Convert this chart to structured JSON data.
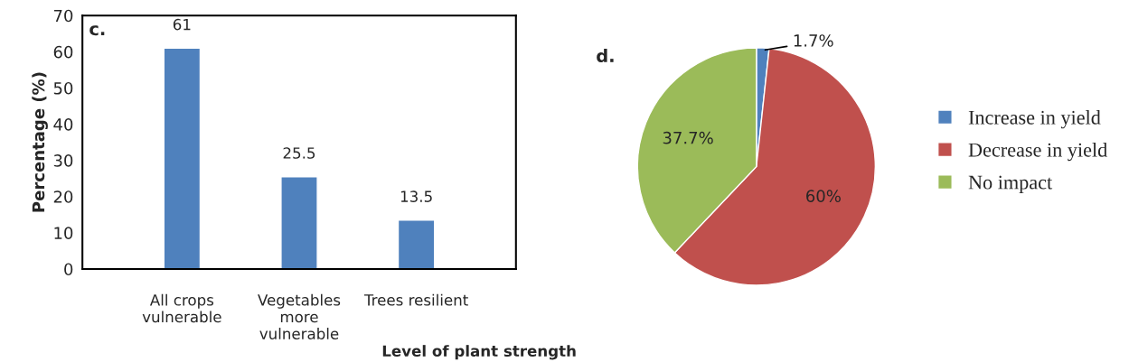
{
  "chart_data": [
    {
      "type": "bar",
      "title": "c.",
      "xlabel": "Level of plant strength",
      "ylabel": "Percentage (%)",
      "categories": [
        "All crops\nvulnerable",
        "Vegetables\nmore\nvulnerable",
        "Trees resilient"
      ],
      "values": [
        61,
        25.5,
        13.5
      ],
      "color": "#4f81bd",
      "data_labels": true,
      "ylim": [
        0,
        70
      ],
      "yticks": [
        0,
        10,
        20,
        30,
        40,
        50,
        60,
        70
      ],
      "grid": false
    },
    {
      "type": "pie",
      "title": "d.",
      "categories": [
        "Increase in yield",
        "Decrease in yield",
        "No impact"
      ],
      "values": [
        1.7,
        60,
        37.7
      ],
      "colors": [
        "#4f81bd",
        "#c0504d",
        "#9bbb59"
      ],
      "value_labels": [
        "1.7%",
        "60%",
        "37.7%"
      ],
      "legend": "right"
    }
  ]
}
